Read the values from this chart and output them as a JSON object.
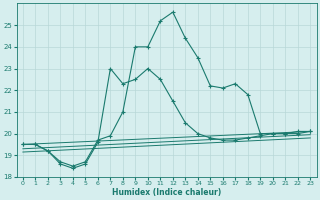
{
  "xlabel": "Humidex (Indice chaleur)",
  "xlim": [
    -0.5,
    23.5
  ],
  "ylim": [
    18,
    26
  ],
  "yticks": [
    18,
    19,
    20,
    21,
    22,
    23,
    24,
    25
  ],
  "xticks": [
    0,
    1,
    2,
    3,
    4,
    5,
    6,
    7,
    8,
    9,
    10,
    11,
    12,
    13,
    14,
    15,
    16,
    17,
    18,
    19,
    20,
    21,
    22,
    23
  ],
  "bg_color": "#d6eeee",
  "grid_color": "#b8d8d8",
  "line_color": "#1a7a6e",
  "curve1_x": [
    0,
    1,
    2,
    3,
    4,
    5,
    6,
    7,
    8,
    9,
    10,
    11,
    12,
    13,
    14,
    15,
    16,
    17,
    18,
    19,
    20,
    21,
    22,
    23
  ],
  "curve1_y": [
    19.5,
    19.5,
    19.2,
    18.7,
    18.5,
    18.7,
    19.7,
    19.9,
    21.0,
    24.0,
    24.0,
    25.2,
    25.6,
    24.4,
    23.5,
    22.2,
    22.1,
    22.3,
    21.8,
    20.0,
    20.0,
    20.0,
    20.1,
    20.1
  ],
  "curve2_x": [
    0,
    1,
    2,
    3,
    4,
    5,
    6,
    7,
    8,
    9,
    10,
    11,
    12,
    13,
    14,
    15,
    16,
    17,
    18,
    19,
    20,
    21,
    22,
    23
  ],
  "curve2_y": [
    19.5,
    19.5,
    19.2,
    18.6,
    18.4,
    18.6,
    19.6,
    23.0,
    22.3,
    22.5,
    23.0,
    22.5,
    21.5,
    20.5,
    20.0,
    19.8,
    19.7,
    19.7,
    19.8,
    19.9,
    20.0,
    20.0,
    20.0,
    20.1
  ],
  "flat_lines": [
    {
      "x0": 0,
      "x1": 23,
      "y0": 19.5,
      "y1": 20.1
    },
    {
      "x0": 0,
      "x1": 23,
      "y0": 19.3,
      "y1": 19.95
    },
    {
      "x0": 0,
      "x1": 23,
      "y0": 19.15,
      "y1": 19.8
    }
  ],
  "figsize": [
    3.2,
    2.0
  ],
  "dpi": 100
}
